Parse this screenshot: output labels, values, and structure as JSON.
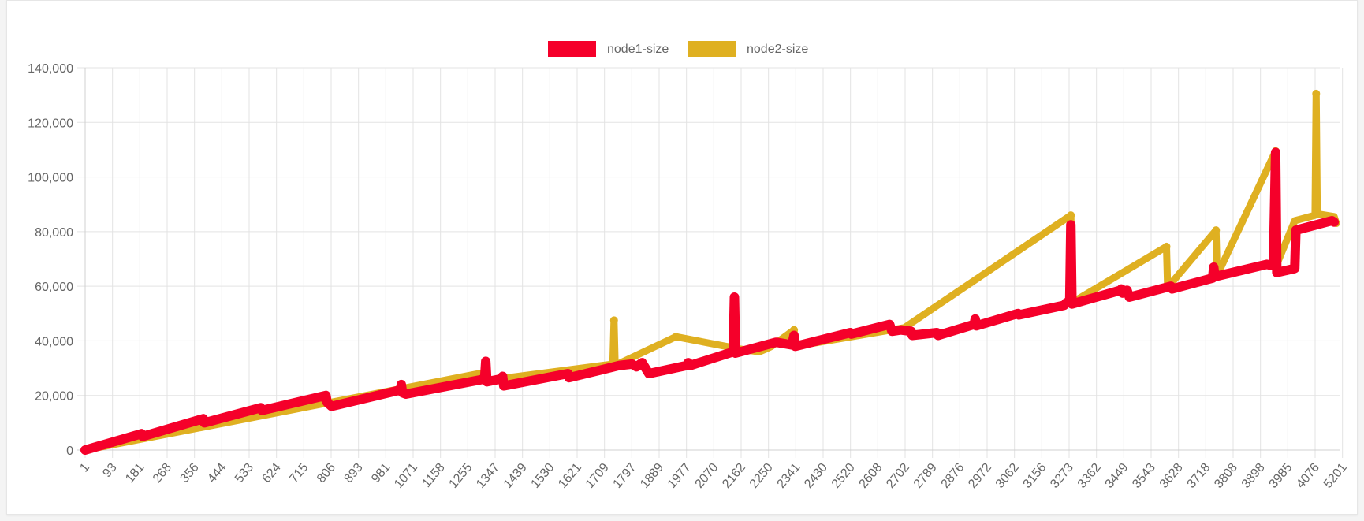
{
  "chart_data": {
    "type": "line",
    "title": "",
    "legend_position": "top-center",
    "grid": true,
    "ylim": [
      0,
      140000
    ],
    "y_ticks": [
      "0",
      "20,000",
      "40,000",
      "60,000",
      "80,000",
      "100,000",
      "120,000",
      "140,000"
    ],
    "x_tick_labels": [
      "1",
      "93",
      "181",
      "268",
      "356",
      "444",
      "533",
      "624",
      "715",
      "806",
      "893",
      "981",
      "1071",
      "1158",
      "1255",
      "1347",
      "1439",
      "1530",
      "1621",
      "1709",
      "1797",
      "1889",
      "1977",
      "2070",
      "2162",
      "2250",
      "2341",
      "2430",
      "2520",
      "2608",
      "2702",
      "2789",
      "2876",
      "2972",
      "3062",
      "3156",
      "3273",
      "3362",
      "3449",
      "3543",
      "3628",
      "3718",
      "3808",
      "3898",
      "3985",
      "4076",
      "5201"
    ],
    "series": [
      {
        "name": "node1-size",
        "color": "#f5002a",
        "points": [
          [
            0,
            0
          ],
          [
            5,
            6000
          ],
          [
            5.1,
            5000
          ],
          [
            10.5,
            11500
          ],
          [
            10.6,
            10000
          ],
          [
            15.6,
            15500
          ],
          [
            15.7,
            14500
          ],
          [
            21.4,
            20000
          ],
          [
            21.5,
            17500
          ],
          [
            21.9,
            16000
          ],
          [
            28,
            22000
          ],
          [
            28.1,
            24000
          ],
          [
            28.2,
            21000
          ],
          [
            28.5,
            20500
          ],
          [
            35.5,
            26000
          ],
          [
            35.6,
            32500
          ],
          [
            35.7,
            25000
          ],
          [
            36.9,
            26000
          ],
          [
            37.1,
            27000
          ],
          [
            37.2,
            23500
          ],
          [
            42.9,
            28000
          ],
          [
            43,
            26500
          ],
          [
            47.5,
            31000
          ],
          [
            48.6,
            31500
          ],
          [
            49,
            30500
          ],
          [
            49.5,
            32000
          ],
          [
            50.1,
            28000
          ],
          [
            53.5,
            31000
          ],
          [
            53.6,
            32000
          ],
          [
            53.8,
            31000
          ],
          [
            57.6,
            36000
          ],
          [
            57.7,
            56000
          ],
          [
            57.8,
            35500
          ],
          [
            61.4,
            39500
          ],
          [
            62.8,
            38500
          ],
          [
            63,
            42000
          ],
          [
            63.1,
            38000
          ],
          [
            68,
            43000
          ],
          [
            68.1,
            42500
          ],
          [
            71.5,
            46000
          ],
          [
            71.7,
            43500
          ],
          [
            72.5,
            44000
          ],
          [
            73.4,
            43500
          ],
          [
            73.5,
            42000
          ],
          [
            75.7,
            43000
          ],
          [
            75.8,
            42000
          ],
          [
            79,
            46000
          ],
          [
            79.1,
            48000
          ],
          [
            79.2,
            45500
          ],
          [
            82.9,
            50000
          ],
          [
            83,
            49500
          ],
          [
            87,
            53000
          ],
          [
            87.2,
            54000
          ],
          [
            87.5,
            54500
          ],
          [
            87.6,
            82500
          ],
          [
            87.7,
            53500
          ],
          [
            92,
            58500
          ],
          [
            92.1,
            59000
          ],
          [
            92.2,
            57500
          ],
          [
            92.6,
            58500
          ],
          [
            92.8,
            56000
          ],
          [
            96.5,
            60000
          ],
          [
            96.6,
            59000
          ],
          [
            100.2,
            63000
          ],
          [
            100.3,
            67000
          ],
          [
            100.4,
            63500
          ],
          [
            105,
            68000
          ],
          [
            105.6,
            67500
          ],
          [
            105.8,
            109000
          ],
          [
            105.9,
            65000
          ],
          [
            107.5,
            66500
          ],
          [
            107.6,
            80500
          ],
          [
            110.8,
            84000
          ],
          [
            111,
            83500
          ]
        ]
      },
      {
        "name": "node2-size",
        "color": "#dfb021",
        "points": [
          [
            0,
            0
          ],
          [
            35.6,
            28500
          ],
          [
            35.7,
            25500
          ],
          [
            46.9,
            31500
          ],
          [
            47,
            47500
          ],
          [
            47.1,
            31000
          ],
          [
            52.5,
            41500
          ],
          [
            58.2,
            37000
          ],
          [
            59.9,
            36000
          ],
          [
            60.5,
            37000
          ],
          [
            61,
            38000
          ],
          [
            63,
            44000
          ],
          [
            63.1,
            38000
          ],
          [
            72.8,
            44800
          ],
          [
            87.6,
            86000
          ],
          [
            87.7,
            54000
          ],
          [
            96.1,
            74500
          ],
          [
            96.2,
            59500
          ],
          [
            100.5,
            80500
          ],
          [
            100.6,
            64000
          ],
          [
            105.8,
            109500
          ],
          [
            105.9,
            68000
          ],
          [
            107.5,
            84000
          ],
          [
            109.3,
            86000
          ],
          [
            109.4,
            130500
          ],
          [
            109.5,
            86500
          ],
          [
            111,
            85500
          ],
          [
            111.2,
            83000
          ]
        ]
      }
    ]
  }
}
